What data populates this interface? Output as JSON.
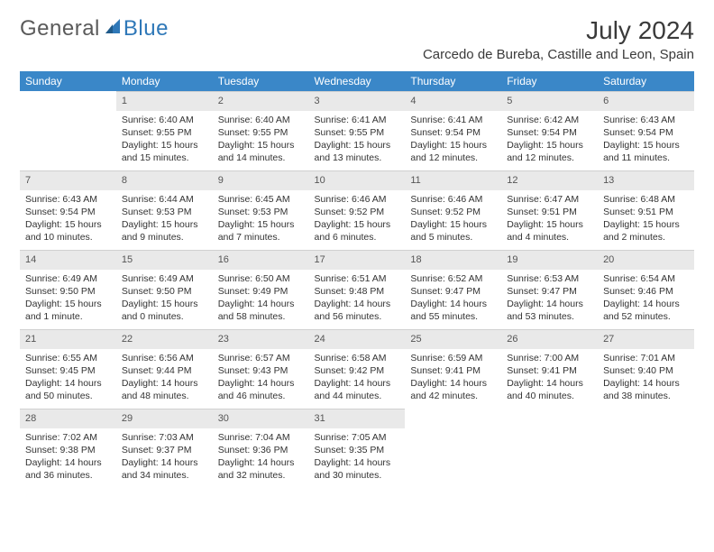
{
  "brand": {
    "word1": "General",
    "word2": "Blue"
  },
  "title": "July 2024",
  "location": "Carcedo de Bureba, Castille and Leon, Spain",
  "colors": {
    "header_bg": "#3a87c8",
    "header_text": "#ffffff",
    "daynum_bg": "#e9e9e9",
    "text": "#333333",
    "brand_gray": "#5a5a5a",
    "brand_blue": "#2f78b8"
  },
  "weekdays": [
    "Sunday",
    "Monday",
    "Tuesday",
    "Wednesday",
    "Thursday",
    "Friday",
    "Saturday"
  ],
  "weeks": [
    [
      null,
      {
        "n": "1",
        "sr": "Sunrise: 6:40 AM",
        "ss": "Sunset: 9:55 PM",
        "dl": "Daylight: 15 hours and 15 minutes."
      },
      {
        "n": "2",
        "sr": "Sunrise: 6:40 AM",
        "ss": "Sunset: 9:55 PM",
        "dl": "Daylight: 15 hours and 14 minutes."
      },
      {
        "n": "3",
        "sr": "Sunrise: 6:41 AM",
        "ss": "Sunset: 9:55 PM",
        "dl": "Daylight: 15 hours and 13 minutes."
      },
      {
        "n": "4",
        "sr": "Sunrise: 6:41 AM",
        "ss": "Sunset: 9:54 PM",
        "dl": "Daylight: 15 hours and 12 minutes."
      },
      {
        "n": "5",
        "sr": "Sunrise: 6:42 AM",
        "ss": "Sunset: 9:54 PM",
        "dl": "Daylight: 15 hours and 12 minutes."
      },
      {
        "n": "6",
        "sr": "Sunrise: 6:43 AM",
        "ss": "Sunset: 9:54 PM",
        "dl": "Daylight: 15 hours and 11 minutes."
      }
    ],
    [
      {
        "n": "7",
        "sr": "Sunrise: 6:43 AM",
        "ss": "Sunset: 9:54 PM",
        "dl": "Daylight: 15 hours and 10 minutes."
      },
      {
        "n": "8",
        "sr": "Sunrise: 6:44 AM",
        "ss": "Sunset: 9:53 PM",
        "dl": "Daylight: 15 hours and 9 minutes."
      },
      {
        "n": "9",
        "sr": "Sunrise: 6:45 AM",
        "ss": "Sunset: 9:53 PM",
        "dl": "Daylight: 15 hours and 7 minutes."
      },
      {
        "n": "10",
        "sr": "Sunrise: 6:46 AM",
        "ss": "Sunset: 9:52 PM",
        "dl": "Daylight: 15 hours and 6 minutes."
      },
      {
        "n": "11",
        "sr": "Sunrise: 6:46 AM",
        "ss": "Sunset: 9:52 PM",
        "dl": "Daylight: 15 hours and 5 minutes."
      },
      {
        "n": "12",
        "sr": "Sunrise: 6:47 AM",
        "ss": "Sunset: 9:51 PM",
        "dl": "Daylight: 15 hours and 4 minutes."
      },
      {
        "n": "13",
        "sr": "Sunrise: 6:48 AM",
        "ss": "Sunset: 9:51 PM",
        "dl": "Daylight: 15 hours and 2 minutes."
      }
    ],
    [
      {
        "n": "14",
        "sr": "Sunrise: 6:49 AM",
        "ss": "Sunset: 9:50 PM",
        "dl": "Daylight: 15 hours and 1 minute."
      },
      {
        "n": "15",
        "sr": "Sunrise: 6:49 AM",
        "ss": "Sunset: 9:50 PM",
        "dl": "Daylight: 15 hours and 0 minutes."
      },
      {
        "n": "16",
        "sr": "Sunrise: 6:50 AM",
        "ss": "Sunset: 9:49 PM",
        "dl": "Daylight: 14 hours and 58 minutes."
      },
      {
        "n": "17",
        "sr": "Sunrise: 6:51 AM",
        "ss": "Sunset: 9:48 PM",
        "dl": "Daylight: 14 hours and 56 minutes."
      },
      {
        "n": "18",
        "sr": "Sunrise: 6:52 AM",
        "ss": "Sunset: 9:47 PM",
        "dl": "Daylight: 14 hours and 55 minutes."
      },
      {
        "n": "19",
        "sr": "Sunrise: 6:53 AM",
        "ss": "Sunset: 9:47 PM",
        "dl": "Daylight: 14 hours and 53 minutes."
      },
      {
        "n": "20",
        "sr": "Sunrise: 6:54 AM",
        "ss": "Sunset: 9:46 PM",
        "dl": "Daylight: 14 hours and 52 minutes."
      }
    ],
    [
      {
        "n": "21",
        "sr": "Sunrise: 6:55 AM",
        "ss": "Sunset: 9:45 PM",
        "dl": "Daylight: 14 hours and 50 minutes."
      },
      {
        "n": "22",
        "sr": "Sunrise: 6:56 AM",
        "ss": "Sunset: 9:44 PM",
        "dl": "Daylight: 14 hours and 48 minutes."
      },
      {
        "n": "23",
        "sr": "Sunrise: 6:57 AM",
        "ss": "Sunset: 9:43 PM",
        "dl": "Daylight: 14 hours and 46 minutes."
      },
      {
        "n": "24",
        "sr": "Sunrise: 6:58 AM",
        "ss": "Sunset: 9:42 PM",
        "dl": "Daylight: 14 hours and 44 minutes."
      },
      {
        "n": "25",
        "sr": "Sunrise: 6:59 AM",
        "ss": "Sunset: 9:41 PM",
        "dl": "Daylight: 14 hours and 42 minutes."
      },
      {
        "n": "26",
        "sr": "Sunrise: 7:00 AM",
        "ss": "Sunset: 9:41 PM",
        "dl": "Daylight: 14 hours and 40 minutes."
      },
      {
        "n": "27",
        "sr": "Sunrise: 7:01 AM",
        "ss": "Sunset: 9:40 PM",
        "dl": "Daylight: 14 hours and 38 minutes."
      }
    ],
    [
      {
        "n": "28",
        "sr": "Sunrise: 7:02 AM",
        "ss": "Sunset: 9:38 PM",
        "dl": "Daylight: 14 hours and 36 minutes."
      },
      {
        "n": "29",
        "sr": "Sunrise: 7:03 AM",
        "ss": "Sunset: 9:37 PM",
        "dl": "Daylight: 14 hours and 34 minutes."
      },
      {
        "n": "30",
        "sr": "Sunrise: 7:04 AM",
        "ss": "Sunset: 9:36 PM",
        "dl": "Daylight: 14 hours and 32 minutes."
      },
      {
        "n": "31",
        "sr": "Sunrise: 7:05 AM",
        "ss": "Sunset: 9:35 PM",
        "dl": "Daylight: 14 hours and 30 minutes."
      },
      null,
      null,
      null
    ]
  ]
}
